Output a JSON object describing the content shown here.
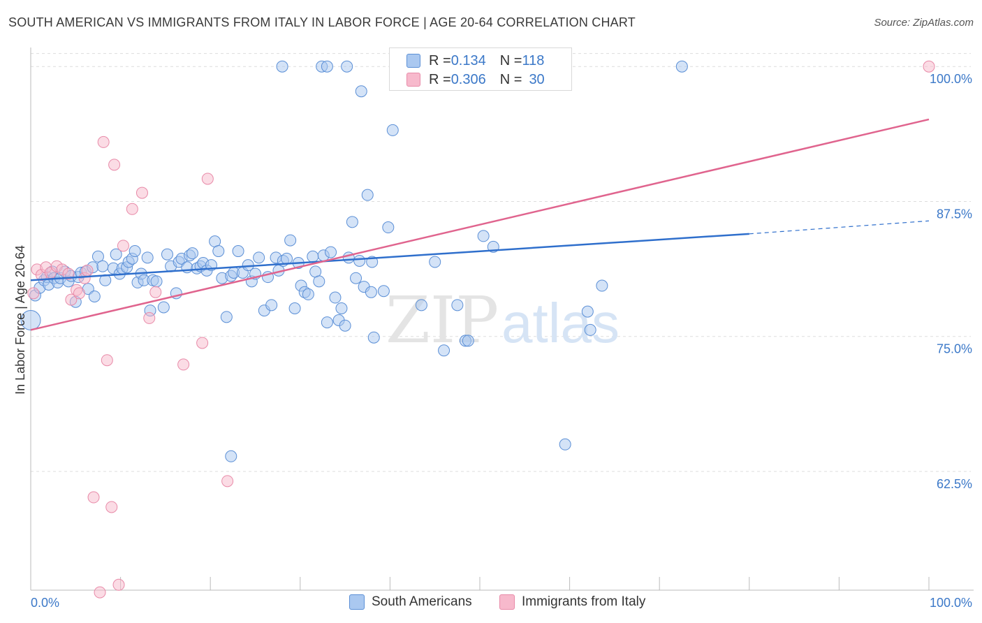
{
  "title": "SOUTH AMERICAN VS IMMIGRANTS FROM ITALY IN LABOR FORCE | AGE 20-64 CORRELATION CHART",
  "source": "Source: ZipAtlas.com",
  "watermark": {
    "zip": "ZIP",
    "atlas": "atlas"
  },
  "colors": {
    "blue_fill": "#aac8f0",
    "blue_stroke": "#5b8fd6",
    "blue_line": "#2f6fcc",
    "pink_fill": "#f7b9cc",
    "pink_stroke": "#e88aa8",
    "pink_line": "#e0648e",
    "axis_label": "#3b78c8",
    "grid": "#dddddd"
  },
  "stats": {
    "rows": [
      {
        "r_label": "R = ",
        "r_value": "0.134",
        "n_label": "N = ",
        "n_value": "118"
      },
      {
        "r_label": "R = ",
        "r_value": "0.306",
        "n_label": "N = ",
        "n_value": "30"
      }
    ]
  },
  "legend": {
    "items": [
      "South Americans",
      "Immigrants from Italy"
    ]
  },
  "chart_data": {
    "type": "scatter",
    "title": "SOUTH AMERICAN VS IMMIGRANTS FROM ITALY IN LABOR FORCE | AGE 20-64 CORRELATION CHART",
    "xlabel": "",
    "ylabel": "In Labor Force | Age 20-64",
    "xlim": [
      0,
      100
    ],
    "ylim": [
      51.5,
      101.5
    ],
    "x_tick_labels": [
      "0.0%",
      "100.0%"
    ],
    "y_ticks": [
      62.5,
      75.0,
      87.5,
      100.0
    ],
    "y_tick_labels": [
      "62.5%",
      "75.0%",
      "87.5%",
      "100.0%"
    ],
    "grid": true,
    "legend_position": "bottom",
    "series": [
      {
        "name": "South Americans",
        "color": "#aac8f0",
        "trend": {
          "x": [
            0,
            80
          ],
          "y": [
            80.2,
            84.5
          ],
          "dashed_to_x": 100,
          "dashed_to_y": 85.7
        },
        "points": [
          [
            0,
            76.5
          ],
          [
            0.5,
            78.8
          ],
          [
            1.0,
            79.5
          ],
          [
            1.5,
            80.2
          ],
          [
            1.8,
            80.5
          ],
          [
            2.0,
            79.8
          ],
          [
            2.4,
            81.0
          ],
          [
            2.6,
            80.4
          ],
          [
            3.0,
            80.0
          ],
          [
            3.3,
            80.4
          ],
          [
            3.8,
            81.0
          ],
          [
            4.2,
            80.1
          ],
          [
            4.5,
            80.6
          ],
          [
            5.0,
            78.2
          ],
          [
            5.3,
            80.5
          ],
          [
            5.6,
            80.9
          ],
          [
            6.1,
            81.0
          ],
          [
            6.4,
            79.4
          ],
          [
            6.9,
            81.4
          ],
          [
            7.1,
            78.7
          ],
          [
            7.5,
            82.4
          ],
          [
            8.0,
            81.5
          ],
          [
            8.3,
            80.2
          ],
          [
            9.2,
            81.3
          ],
          [
            9.5,
            82.6
          ],
          [
            9.9,
            80.8
          ],
          [
            10.2,
            81.3
          ],
          [
            10.7,
            81.4
          ],
          [
            10.9,
            81.9
          ],
          [
            11.3,
            82.2
          ],
          [
            11.6,
            82.9
          ],
          [
            11.9,
            80.0
          ],
          [
            12.3,
            80.8
          ],
          [
            12.6,
            80.2
          ],
          [
            13.0,
            82.3
          ],
          [
            13.3,
            77.4
          ],
          [
            13.6,
            80.2
          ],
          [
            14.0,
            80.1
          ],
          [
            14.8,
            77.7
          ],
          [
            15.2,
            82.6
          ],
          [
            15.6,
            81.5
          ],
          [
            16.2,
            79.0
          ],
          [
            16.5,
            81.9
          ],
          [
            16.8,
            82.2
          ],
          [
            17.4,
            81.4
          ],
          [
            17.7,
            82.5
          ],
          [
            18.0,
            82.7
          ],
          [
            18.5,
            81.3
          ],
          [
            18.9,
            81.5
          ],
          [
            19.2,
            81.8
          ],
          [
            19.6,
            81.1
          ],
          [
            20.1,
            81.6
          ],
          [
            20.5,
            83.8
          ],
          [
            20.9,
            82.9
          ],
          [
            21.3,
            80.4
          ],
          [
            21.8,
            76.8
          ],
          [
            22.3,
            80.6
          ],
          [
            22.6,
            80.9
          ],
          [
            23.1,
            82.9
          ],
          [
            23.6,
            80.9
          ],
          [
            24.2,
            81.6
          ],
          [
            24.6,
            80.1
          ],
          [
            25.0,
            80.8
          ],
          [
            25.4,
            82.3
          ],
          [
            26.0,
            77.4
          ],
          [
            26.4,
            80.5
          ],
          [
            26.8,
            77.9
          ],
          [
            27.3,
            82.3
          ],
          [
            27.6,
            81.1
          ],
          [
            28.1,
            82.0
          ],
          [
            28.5,
            82.2
          ],
          [
            28.9,
            83.9
          ],
          [
            29.4,
            77.6
          ],
          [
            29.8,
            81.8
          ],
          [
            30.1,
            79.7
          ],
          [
            30.5,
            79.1
          ],
          [
            30.9,
            78.9
          ],
          [
            31.4,
            82.4
          ],
          [
            31.7,
            81.0
          ],
          [
            32.1,
            80.1
          ],
          [
            32.6,
            82.5
          ],
          [
            33.0,
            76.3
          ],
          [
            33.4,
            82.8
          ],
          [
            33.9,
            78.6
          ],
          [
            34.3,
            76.5
          ],
          [
            34.6,
            77.6
          ],
          [
            35.0,
            76.0
          ],
          [
            35.4,
            82.3
          ],
          [
            35.8,
            85.6
          ],
          [
            36.2,
            80.4
          ],
          [
            36.6,
            82.0
          ],
          [
            37.1,
            79.6
          ],
          [
            37.5,
            88.1
          ],
          [
            37.9,
            79.1
          ],
          [
            38.2,
            74.9
          ],
          [
            39.3,
            79.2
          ],
          [
            39.8,
            85.1
          ],
          [
            40.3,
            94.1
          ],
          [
            28.0,
            100.0
          ],
          [
            32.4,
            100.0
          ],
          [
            33.0,
            100.0
          ],
          [
            35.2,
            100.0
          ],
          [
            36.8,
            97.7
          ],
          [
            38.0,
            81.9
          ],
          [
            43.5,
            77.9
          ],
          [
            46.0,
            73.7
          ],
          [
            48.4,
            74.6
          ],
          [
            48.7,
            74.6
          ],
          [
            50.4,
            84.3
          ],
          [
            51.5,
            83.3
          ],
          [
            45.0,
            81.9
          ],
          [
            47.5,
            77.9
          ],
          [
            62.3,
            75.6
          ],
          [
            63.6,
            79.7
          ],
          [
            72.5,
            100.0
          ],
          [
            59.5,
            65.0
          ],
          [
            62.0,
            77.3
          ],
          [
            22.3,
            63.9
          ]
        ]
      },
      {
        "name": "Immigrants from Italy",
        "color": "#f7b9cc",
        "trend": {
          "x": [
            0,
            100
          ],
          "y": [
            75.6,
            95.1
          ]
        },
        "points": [
          [
            0.3,
            79.0
          ],
          [
            0.7,
            81.2
          ],
          [
            1.2,
            80.7
          ],
          [
            1.7,
            81.4
          ],
          [
            2.2,
            80.9
          ],
          [
            2.9,
            81.5
          ],
          [
            3.5,
            81.2
          ],
          [
            4.2,
            80.8
          ],
          [
            4.5,
            78.4
          ],
          [
            5.1,
            79.3
          ],
          [
            5.4,
            79.0
          ],
          [
            6.0,
            80.4
          ],
          [
            6.3,
            81.1
          ],
          [
            8.1,
            93.0
          ],
          [
            8.5,
            72.8
          ],
          [
            9.3,
            90.9
          ],
          [
            10.3,
            83.4
          ],
          [
            11.3,
            86.8
          ],
          [
            12.4,
            88.3
          ],
          [
            13.2,
            76.7
          ],
          [
            13.9,
            79.1
          ],
          [
            17.0,
            72.4
          ],
          [
            19.1,
            74.4
          ],
          [
            19.7,
            89.6
          ],
          [
            21.9,
            61.6
          ],
          [
            7.0,
            60.1
          ],
          [
            9.0,
            59.2
          ],
          [
            7.7,
            51.3
          ],
          [
            9.8,
            52.0
          ],
          [
            100.0,
            100.0
          ]
        ]
      }
    ]
  }
}
